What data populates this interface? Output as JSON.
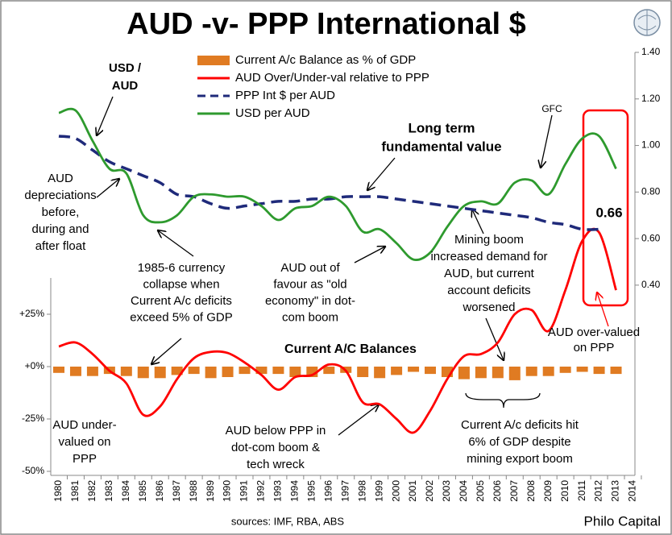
{
  "chart_data": {
    "type": "combo",
    "title": "AUD -v- PPP International $",
    "categories": [
      "1980",
      "1981",
      "1982",
      "1983",
      "1984",
      "1985",
      "1986",
      "1987",
      "1988",
      "1989",
      "1990",
      "1991",
      "1992",
      "1993",
      "1994",
      "1995",
      "1996",
      "1997",
      "1998",
      "1999",
      "2000",
      "2001",
      "2002",
      "2003",
      "2004",
      "2005",
      "2006",
      "2007",
      "2008",
      "2009",
      "2010",
      "2011",
      "2012",
      "2013",
      "2014"
    ],
    "series": [
      {
        "name": "Current A/c Balance as % of GDP",
        "type": "bar",
        "color": "#e07b22",
        "axis": "y",
        "values": [
          -3,
          -4.5,
          -4.5,
          -3.5,
          -4.5,
          -5.5,
          -5.5,
          -4,
          -3.5,
          -5.5,
          -5,
          -3.5,
          -3.5,
          -3.5,
          -5,
          -5,
          -3.5,
          -3,
          -5,
          -5.5,
          -4,
          -2.5,
          -3.5,
          -5,
          -6,
          -5.5,
          -5.5,
          -6.5,
          -4.5,
          -4.5,
          -3,
          -2.5,
          -3.5,
          -3.5,
          null
        ]
      },
      {
        "name": "AUD Over/Under-val relative to PPP",
        "type": "line",
        "color": "#ff0000",
        "axis": "y",
        "values": [
          9.6,
          11.5,
          6,
          -2,
          -8,
          -23,
          -19,
          -6,
          4,
          7,
          6.5,
          2,
          -4,
          -11,
          -5,
          -4,
          1,
          -2,
          -17,
          -18,
          -25,
          -31.5,
          -21,
          -6,
          5,
          6,
          11.5,
          25,
          27,
          17,
          36.5,
          60,
          64,
          36.5,
          null
        ]
      },
      {
        "name": "PPP Int $ per AUD",
        "type": "line",
        "dashed": true,
        "color": "#1f2a7a",
        "axis": "y2",
        "values": [
          1.04,
          1.03,
          0.98,
          0.93,
          0.9,
          0.87,
          0.84,
          0.79,
          0.78,
          0.75,
          0.73,
          0.74,
          0.75,
          0.76,
          0.76,
          0.77,
          0.77,
          0.78,
          0.78,
          0.78,
          0.77,
          0.76,
          0.75,
          0.74,
          0.73,
          0.72,
          0.71,
          0.7,
          0.69,
          0.67,
          0.66,
          0.64,
          0.64,
          null,
          null
        ]
      },
      {
        "name": "USD per AUD",
        "type": "line",
        "color": "#2e9a2e",
        "axis": "y2",
        "values": [
          1.14,
          1.15,
          1.02,
          0.9,
          0.88,
          0.7,
          0.67,
          0.7,
          0.78,
          0.79,
          0.78,
          0.78,
          0.74,
          0.68,
          0.73,
          0.74,
          0.78,
          0.74,
          0.63,
          0.64,
          0.58,
          0.51,
          0.54,
          0.65,
          0.74,
          0.76,
          0.75,
          0.84,
          0.85,
          0.79,
          0.92,
          1.03,
          1.04,
          0.9,
          null
        ]
      }
    ],
    "ylim": [
      -50,
      150
    ],
    "yticks": [
      {
        "value": 25,
        "label": "+25%"
      },
      {
        "value": 0,
        "label": "+0%"
      },
      {
        "value": -25,
        "label": "-25%"
      },
      {
        "value": -50,
        "label": "-50%"
      }
    ],
    "y2lim": [
      -0.4,
      1.4
    ],
    "y2ticks": [
      {
        "value": 0.4,
        "label": "0.40"
      },
      {
        "value": 0.6,
        "label": "0.60"
      },
      {
        "value": 0.8,
        "label": "0.80"
      },
      {
        "value": 1,
        "label": "1.00"
      },
      {
        "value": 1.2,
        "label": "1.20"
      },
      {
        "value": 1.4,
        "label": "1.40"
      }
    ],
    "annotations": [
      {
        "lines": [
          "USD /",
          "AUD"
        ]
      },
      {
        "lines": [
          "GFC"
        ]
      },
      {
        "lines": [
          "Long term",
          "fundamental value"
        ]
      },
      {
        "lines": [
          "AUD",
          "depreciations",
          "before,",
          "during and",
          "after float"
        ]
      },
      {
        "lines": [
          "1985-6 currency",
          "collapse when",
          "Current A/c deficits",
          "exceed 5% of GDP"
        ]
      },
      {
        "lines": [
          "AUD out of",
          "favour as \"old",
          "economy\" in dot-",
          "com boom"
        ]
      },
      {
        "lines": [
          "Mining boom",
          "increased demand for",
          "AUD, but current",
          "account deficits",
          "worsened"
        ]
      },
      {
        "lines": [
          "AUD over-valued",
          "on PPP"
        ]
      },
      {
        "lines": [
          "AUD under-",
          "valued on",
          "PPP"
        ]
      },
      {
        "lines": [
          "AUD below PPP in",
          "dot-com boom &",
          "tech wreck"
        ]
      },
      {
        "lines": [
          "Current A/c deficits hit",
          "6% of GDP despite",
          "mining export boom"
        ]
      },
      {
        "lines": [
          "0.66"
        ]
      },
      {
        "lines": [
          "Current A/C Balances"
        ]
      }
    ],
    "source": "sources: IMF, RBA, ABS",
    "credit": "Philo Capital"
  }
}
